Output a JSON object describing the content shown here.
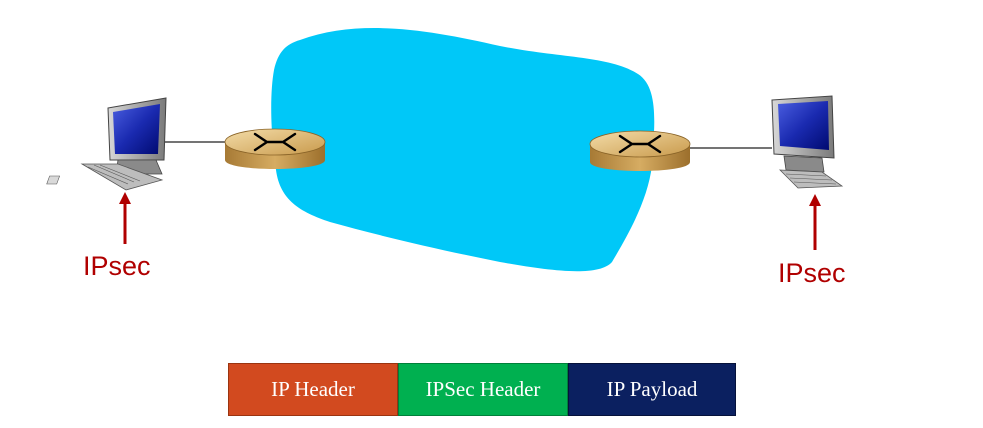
{
  "labels": {
    "left_ipsec": "IPsec",
    "right_ipsec": "IPsec"
  },
  "packet": [
    {
      "label": "IP Header",
      "color": "#d24a1f"
    },
    {
      "label": "IPSec Header",
      "color": "#00b050"
    },
    {
      "label": "IP Payload",
      "color": "#0b2060"
    }
  ],
  "colors": {
    "network_cloud": "#00c8f8",
    "label_red": "#b00000",
    "router_gold": "#d9ae66"
  }
}
